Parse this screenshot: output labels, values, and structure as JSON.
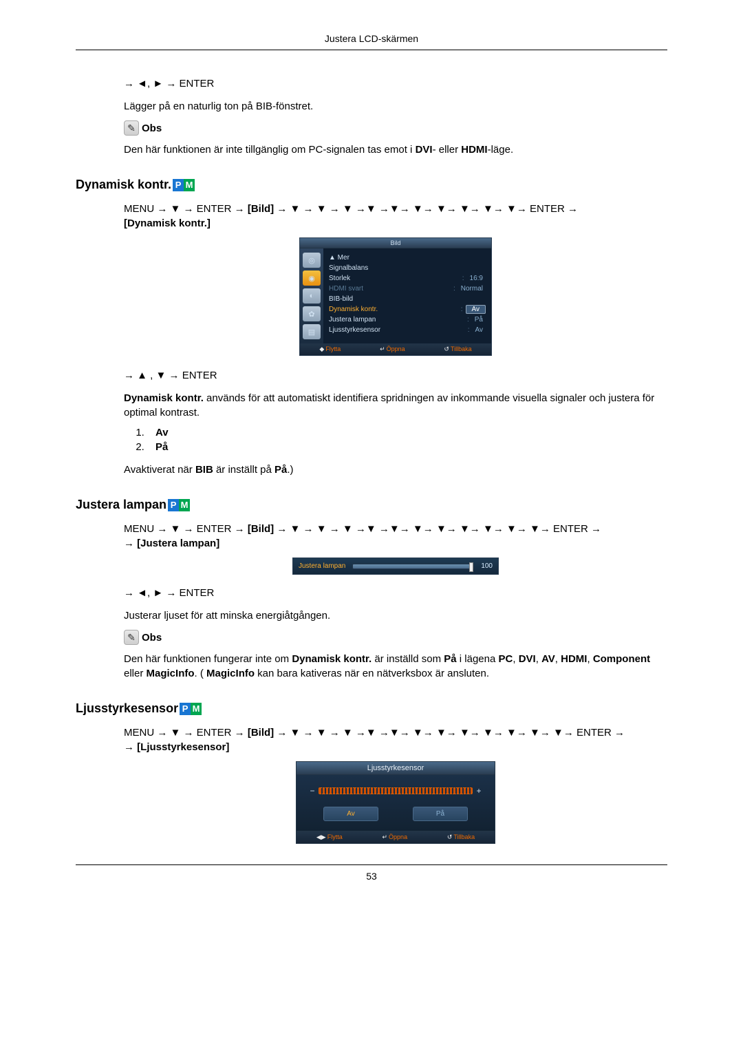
{
  "header": "Justera LCD-skärmen",
  "pageNumber": "53",
  "block1": {
    "nav": "→ ◄, ► → ENTER",
    "para1": "Lägger på en naturlig ton på BIB-fönstret.",
    "noteLabel": "Obs",
    "para2_pre": "Den här funktionen är inte tillgänglig om PC-signalen tas emot i ",
    "dvi": "DVI",
    "mid": "- eller ",
    "hdmi": "HDMI",
    "post": "-läge."
  },
  "section1": {
    "title": "Dynamisk kontr.",
    "menuLine_a": "MENU → ▼ → ENTER → ",
    "menuLine_bild": "[Bild]",
    "menuLine_b": " → ▼ → ▼ → ▼ →▼ →▼→ ▼→ ▼→ ▼→ ▼→ ▼→ ENTER → ",
    "menuLine_target": "[Dynamisk kontr.]",
    "osd": {
      "title": "Bild",
      "rows": [
        {
          "k": "▲ Mer",
          "v": "",
          "cls": "nohl"
        },
        {
          "k": "Signalbalans",
          "v": "",
          "cls": "nohl"
        },
        {
          "k": "Storlek",
          "v": "16:9",
          "cls": "nohl",
          "sep": ":"
        },
        {
          "k": "HDMI svart",
          "v": "Normal",
          "cls": "dim nohl",
          "sep": ":"
        },
        {
          "k": "BIB-bild",
          "v": "",
          "cls": "nohl"
        },
        {
          "k": "Dynamisk kontr.",
          "v": "Av",
          "cls": "hl",
          "sep": ":"
        },
        {
          "k": "Justera lampan",
          "v": "På",
          "cls": "nohl",
          "sep": ":"
        },
        {
          "k": "Ljusstyrkesensor",
          "v": "Av",
          "cls": "nohl",
          "sep": ":"
        }
      ],
      "footer": [
        "Flytta",
        "Öppna",
        "Tillbaka"
      ]
    },
    "nav2": "→ ▲ , ▼ → ENTER",
    "desc_b1": "Dynamisk kontr.",
    "desc_rest": " används för att automatiskt identifiera spridningen av inkommande visuella signaler och justera för optimal kontrast.",
    "opts": [
      "Av",
      "På"
    ],
    "foot_pre": "Avaktiverat när ",
    "foot_b1": "BIB",
    "foot_mid": " är inställt på ",
    "foot_b2": "På",
    "foot_post": ".)"
  },
  "section2": {
    "title": "Justera lampan",
    "menuLine_a": "MENU → ▼ → ENTER → ",
    "menuLine_bild": "[Bild]",
    "menuLine_b": " → ▼ → ▼ → ▼ →▼ →▼→ ▼→ ▼→ ▼→ ▼→ ▼→ ▼→ ENTER → ",
    "menuLine_target": "[Justera lampan]",
    "slider": {
      "label": "Justera lampan",
      "value": "100"
    },
    "nav2": "→ ◄, ► → ENTER",
    "para1": "Justerar ljuset för att minska energiåtgången.",
    "noteLabel": "Obs",
    "p2_a": "Den här funktionen fungerar inte om ",
    "p2_b1": "Dynamisk kontr.",
    "p2_b": " är inställd som ",
    "p2_b2": "På",
    "p2_c": " i lägena ",
    "p2_b3": "PC",
    "p2_d": ", ",
    "p2_b4": "DVI",
    "p2_e": ", ",
    "p2_b5": "AV",
    "p2_f": ", ",
    "p2_b6": "HDMI",
    "p2_g": ", ",
    "p2_b7": "Component",
    "p2_h": " eller ",
    "p2_b8": "MagicInfo",
    "p2_i": ". ( ",
    "p2_b9": "MagicInfo",
    "p2_j": " kan bara kativeras när en nätverksbox är ansluten."
  },
  "section3": {
    "title": "Ljusstyrkesensor",
    "menuLine_a": "MENU → ▼ → ENTER → ",
    "menuLine_bild": "[Bild]",
    "menuLine_b": " → ▼ → ▼ → ▼ →▼ →▼→ ▼→ ▼→ ▼→ ▼→ ▼→ ▼→ ▼→ ENTER → ",
    "menuLine_target": "[Ljusstyrkesensor]",
    "dialog": {
      "title": "Ljusstyrkesensor",
      "minus": "−",
      "plus": "+",
      "opts": [
        "Av",
        "På"
      ],
      "footer": [
        "Flytta",
        "Öppna",
        "Tillbaka"
      ]
    }
  }
}
